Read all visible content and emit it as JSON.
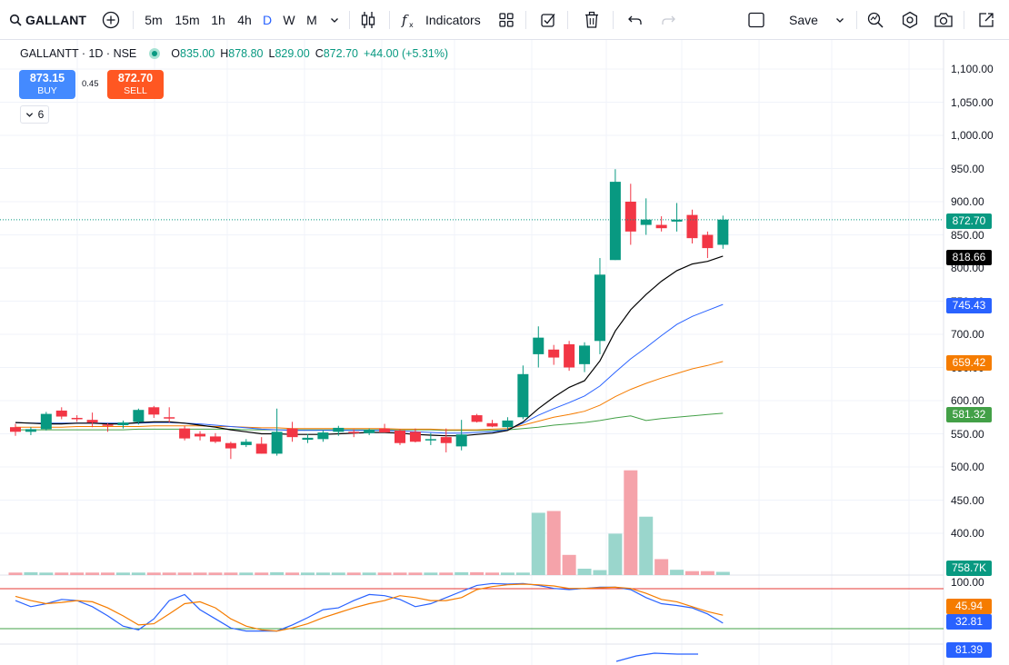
{
  "toolbar": {
    "symbol": "GALLANT",
    "intervals": [
      "5m",
      "15m",
      "1h",
      "4h",
      "D",
      "W",
      "M"
    ],
    "active_interval": "D",
    "indicators_label": "Indicators",
    "save_label": "Save"
  },
  "legend": {
    "title": "GALLANTT · 1D · NSE",
    "open_key": "O",
    "open": "835.00",
    "high_key": "H",
    "high": "878.80",
    "low_key": "L",
    "low": "829.00",
    "close_key": "C",
    "close": "872.70",
    "change": "+44.00 (+5.31%)"
  },
  "trade": {
    "buy_price": "873.15",
    "buy_label": "BUY",
    "spread": "0.45",
    "sell_price": "872.70",
    "sell_label": "SELL",
    "collapse_count": "6"
  },
  "price_axis": [
    "1,100.00",
    "1,050.00",
    "1,000.00",
    "950.00",
    "900.00",
    "850.00",
    "800.00",
    "750.00",
    "700.00",
    "650.00",
    "600.00",
    "550.00",
    "500.00",
    "450.00",
    "400.00"
  ],
  "tags": {
    "last_price": "872.70",
    "ema_black": "818.66",
    "ema_blue": "745.43",
    "ema_orange": "659.42",
    "ema_green": "581.32",
    "volume": "758.7K",
    "osc_axis_top": "100.00",
    "osc_orange": "45.94",
    "osc_blue": "32.81",
    "osc2_blue": "81.39"
  },
  "colors": {
    "up": "#089981",
    "down": "#f23645",
    "ema_black": "#000000",
    "ema_blue": "#2962ff",
    "ema_orange": "#f57c00",
    "ema_green": "#43a047",
    "vol_up": "#9ad6cc",
    "vol_down": "#f5a3aa"
  },
  "chart_data": {
    "type": "candlestick",
    "candles": [
      {
        "o": 560,
        "h": 565,
        "l": 547,
        "c": 553
      },
      {
        "o": 553,
        "h": 560,
        "l": 548,
        "c": 557
      },
      {
        "o": 557,
        "h": 583,
        "l": 555,
        "c": 580
      },
      {
        "o": 585,
        "h": 590,
        "l": 572,
        "c": 576
      },
      {
        "o": 574,
        "h": 578,
        "l": 568,
        "c": 573
      },
      {
        "o": 571,
        "h": 582,
        "l": 560,
        "c": 567
      },
      {
        "o": 564,
        "h": 566,
        "l": 553,
        "c": 562
      },
      {
        "o": 563,
        "h": 570,
        "l": 558,
        "c": 567
      },
      {
        "o": 568,
        "h": 588,
        "l": 564,
        "c": 586
      },
      {
        "o": 590,
        "h": 592,
        "l": 574,
        "c": 579
      },
      {
        "o": 575,
        "h": 590,
        "l": 567,
        "c": 573
      },
      {
        "o": 558,
        "h": 562,
        "l": 540,
        "c": 543
      },
      {
        "o": 550,
        "h": 554,
        "l": 540,
        "c": 546
      },
      {
        "o": 546,
        "h": 551,
        "l": 536,
        "c": 538
      },
      {
        "o": 536,
        "h": 538,
        "l": 512,
        "c": 528
      },
      {
        "o": 533,
        "h": 542,
        "l": 530,
        "c": 538
      },
      {
        "o": 535,
        "h": 545,
        "l": 520,
        "c": 520
      },
      {
        "o": 520,
        "h": 588,
        "l": 517,
        "c": 553
      },
      {
        "o": 558,
        "h": 568,
        "l": 538,
        "c": 545
      },
      {
        "o": 541,
        "h": 550,
        "l": 536,
        "c": 544
      },
      {
        "o": 542,
        "h": 555,
        "l": 538,
        "c": 552
      },
      {
        "o": 553,
        "h": 562,
        "l": 547,
        "c": 559
      },
      {
        "o": 553,
        "h": 557,
        "l": 545,
        "c": 551
      },
      {
        "o": 551,
        "h": 558,
        "l": 548,
        "c": 556
      },
      {
        "o": 558,
        "h": 565,
        "l": 552,
        "c": 552
      },
      {
        "o": 555,
        "h": 557,
        "l": 533,
        "c": 536
      },
      {
        "o": 553,
        "h": 558,
        "l": 537,
        "c": 538
      },
      {
        "o": 541,
        "h": 551,
        "l": 533,
        "c": 542
      },
      {
        "o": 545,
        "h": 558,
        "l": 522,
        "c": 536
      },
      {
        "o": 531,
        "h": 571,
        "l": 525,
        "c": 549
      },
      {
        "o": 578,
        "h": 580,
        "l": 567,
        "c": 568
      },
      {
        "o": 566,
        "h": 571,
        "l": 560,
        "c": 561
      },
      {
        "o": 560,
        "h": 575,
        "l": 556,
        "c": 570
      },
      {
        "o": 575,
        "h": 653,
        "l": 572,
        "c": 640
      },
      {
        "o": 670,
        "h": 712,
        "l": 650,
        "c": 695
      },
      {
        "o": 677,
        "h": 684,
        "l": 654,
        "c": 665
      },
      {
        "o": 685,
        "h": 690,
        "l": 645,
        "c": 650
      },
      {
        "o": 655,
        "h": 688,
        "l": 643,
        "c": 683
      },
      {
        "o": 690,
        "h": 815,
        "l": 670,
        "c": 790
      },
      {
        "o": 812,
        "h": 949,
        "l": 812,
        "c": 930
      },
      {
        "o": 900,
        "h": 927,
        "l": 835,
        "c": 855
      },
      {
        "o": 865,
        "h": 905,
        "l": 850,
        "c": 873
      },
      {
        "o": 865,
        "h": 878,
        "l": 855,
        "c": 860
      },
      {
        "o": 870,
        "h": 898,
        "l": 855,
        "c": 873
      },
      {
        "o": 880,
        "h": 888,
        "l": 837,
        "c": 845
      },
      {
        "o": 850,
        "h": 855,
        "l": 815,
        "c": 830
      },
      {
        "o": 835,
        "h": 879,
        "l": 829,
        "c": 873
      }
    ],
    "volume_scale_top": 760,
    "volume": [
      1,
      2,
      1,
      1,
      1,
      1,
      1,
      1,
      1,
      1,
      1,
      1,
      1,
      1,
      1,
      1,
      1,
      2,
      1,
      1,
      1,
      1,
      1,
      1,
      1,
      1,
      1,
      1,
      1,
      2,
      2,
      1,
      1,
      0,
      1,
      0,
      1,
      0,
      0,
      1,
      0,
      0,
      0,
      0,
      0,
      0,
      0
    ],
    "volume_values": [
      14,
      16,
      14,
      14,
      14,
      14,
      14,
      14,
      14,
      14,
      14,
      14,
      14,
      14,
      14,
      14,
      14,
      16,
      14,
      14,
      14,
      14,
      14,
      14,
      14,
      14,
      14,
      14,
      14,
      16,
      16,
      14,
      14,
      14,
      352,
      362,
      114,
      36,
      28,
      234,
      592,
      330,
      90,
      30,
      22,
      22,
      18
    ],
    "ema_black": [
      567,
      566,
      565,
      565,
      566,
      566,
      565,
      565,
      567,
      568,
      568,
      566,
      563,
      560,
      556,
      553,
      550,
      550,
      549,
      549,
      549,
      550,
      551,
      552,
      552,
      551,
      549,
      548,
      547,
      547,
      549,
      551,
      555,
      568,
      588,
      605,
      620,
      630,
      660,
      705,
      737,
      760,
      780,
      796,
      806,
      810,
      818
    ],
    "ema_blue": [
      567,
      566,
      566,
      566,
      566,
      566,
      566,
      566,
      566,
      567,
      567,
      566,
      565,
      563,
      561,
      559,
      557,
      556,
      555,
      555,
      555,
      555,
      555,
      555,
      555,
      554,
      553,
      552,
      551,
      551,
      552,
      553,
      556,
      566,
      578,
      588,
      597,
      607,
      622,
      643,
      663,
      680,
      698,
      715,
      727,
      736,
      745
    ],
    "ema_orange": [
      560,
      560,
      560,
      560,
      561,
      561,
      561,
      561,
      561,
      562,
      562,
      562,
      562,
      561,
      561,
      560,
      559,
      559,
      558,
      558,
      558,
      558,
      558,
      558,
      558,
      557,
      557,
      557,
      556,
      556,
      556,
      557,
      558,
      563,
      569,
      575,
      579,
      584,
      593,
      606,
      617,
      626,
      634,
      641,
      648,
      653,
      659
    ],
    "ema_green": [
      556,
      556,
      556,
      556,
      556,
      556,
      556,
      556,
      557,
      557,
      557,
      557,
      557,
      557,
      557,
      556,
      556,
      556,
      556,
      556,
      556,
      556,
      556,
      556,
      556,
      556,
      556,
      556,
      555,
      555,
      555,
      555,
      556,
      558,
      560,
      563,
      565,
      567,
      570,
      574,
      577,
      570,
      573,
      575,
      577,
      579,
      581
    ],
    "osc_blue": [
      70,
      60,
      65,
      72,
      70,
      60,
      45,
      28,
      22,
      40,
      70,
      80,
      55,
      40,
      25,
      20,
      20,
      20,
      30,
      42,
      55,
      58,
      70,
      80,
      78,
      72,
      60,
      65,
      75,
      85,
      95,
      98,
      97,
      98,
      95,
      90,
      88,
      90,
      92,
      92,
      88,
      75,
      65,
      62,
      58,
      48,
      33
    ],
    "osc_orange": [
      77,
      70,
      65,
      67,
      70,
      68,
      58,
      45,
      30,
      32,
      48,
      65,
      68,
      58,
      40,
      28,
      22,
      20,
      25,
      32,
      42,
      50,
      58,
      65,
      70,
      78,
      75,
      70,
      70,
      75,
      88,
      93,
      96,
      97,
      96,
      94,
      90,
      90,
      91,
      92,
      90,
      82,
      72,
      68,
      60,
      52,
      46
    ],
    "osc_ref_high": 80,
    "osc_ref_low": 20
  }
}
